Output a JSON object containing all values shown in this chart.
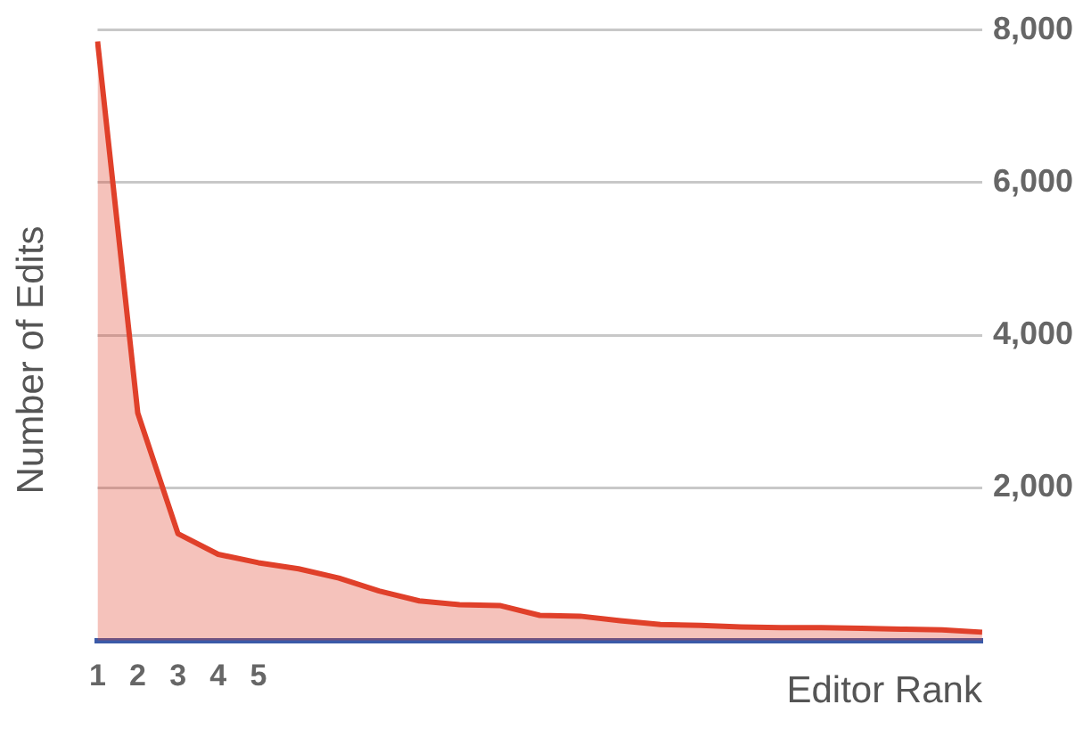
{
  "chart_data": {
    "type": "area",
    "xlabel": "Editor Rank",
    "ylabel": "Number of Edits",
    "categories": [
      "1",
      "2",
      "3",
      "4",
      "5",
      null,
      null,
      null,
      null,
      null,
      null,
      null,
      null,
      null,
      null,
      null,
      null,
      null,
      null,
      null,
      null,
      null,
      null
    ],
    "series": [
      {
        "color": "#e0402a",
        "values": [
          7850,
          2980,
          1400,
          1130,
          1020,
          940,
          820,
          650,
          520,
          470,
          460,
          330,
          320,
          260,
          210,
          200,
          180,
          170,
          170,
          160,
          150,
          140,
          110
        ]
      }
    ],
    "ylim": [
      0,
      8000
    ],
    "yticks": [
      {
        "value": 0,
        "label": null
      },
      {
        "value": 2000,
        "label": "2,000"
      },
      {
        "value": 4000,
        "label": "4,000"
      },
      {
        "value": 6000,
        "label": "6,000"
      },
      {
        "value": 8000,
        "label": "8,000"
      }
    ],
    "grid": "y",
    "legend": false,
    "marker": "none",
    "line_style": "solid"
  }
}
